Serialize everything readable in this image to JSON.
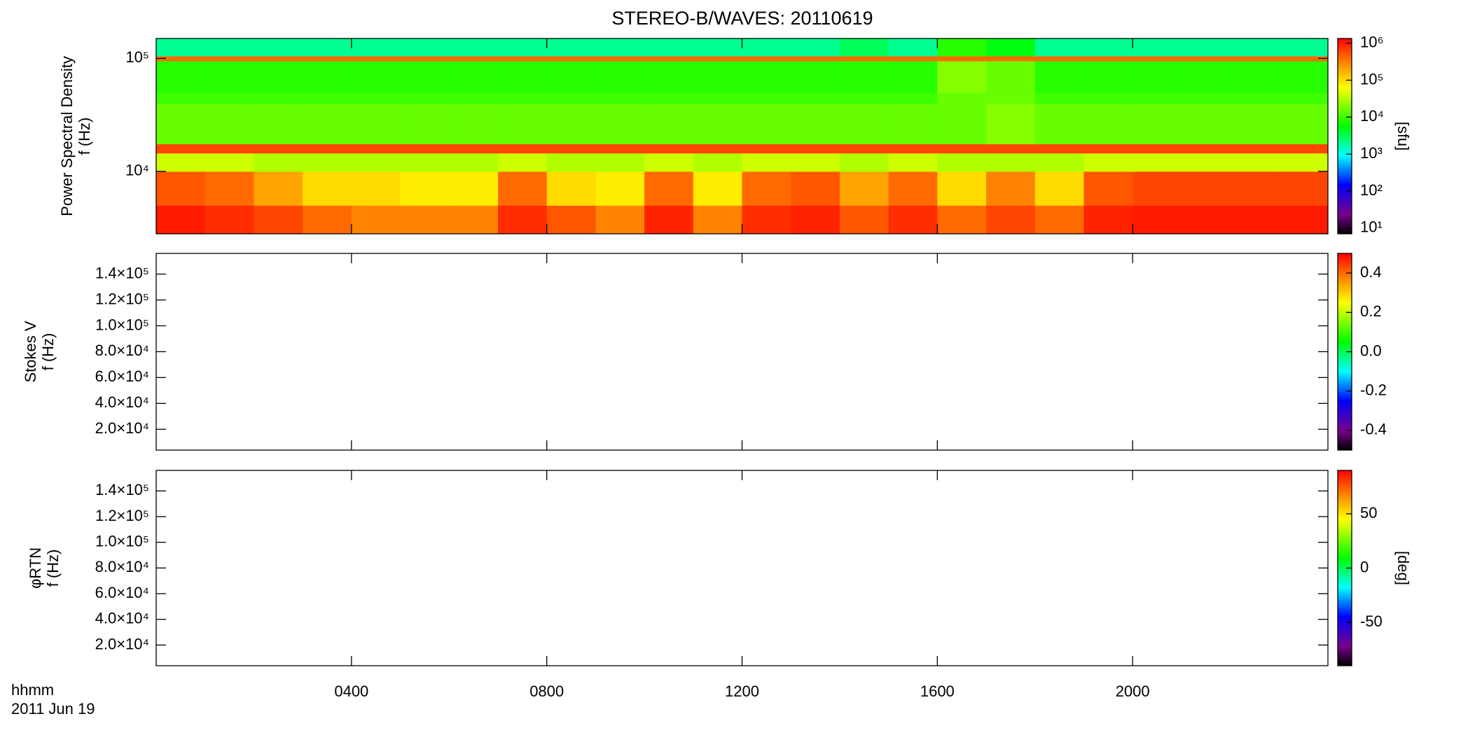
{
  "title": "STEREO-B/WAVES: 20110619",
  "time_axis": {
    "label": "hhmm",
    "date": "2011 Jun 19",
    "xlim": [
      0,
      24
    ],
    "xticks": [
      {
        "value": 4,
        "label": "0400"
      },
      {
        "value": 8,
        "label": "0800"
      },
      {
        "value": 12,
        "label": "1200"
      },
      {
        "value": 16,
        "label": "1600"
      },
      {
        "value": 20,
        "label": "2000"
      }
    ]
  },
  "chart_data": [
    {
      "type": "heatmap",
      "ylabel": [
        "Power Spectral Density",
        "f (Hz)"
      ],
      "ylog": true,
      "ylim": [
        2800,
        150000
      ],
      "yticks": [
        {
          "value": 10000,
          "label": "10⁴"
        },
        {
          "value": 100000,
          "label": "10⁵"
        }
      ],
      "x_edges": [
        0,
        1,
        2,
        3,
        4,
        5,
        6,
        7,
        8,
        9,
        10,
        11,
        12,
        13,
        14,
        15,
        16,
        17,
        18,
        19,
        20,
        21,
        22,
        23,
        24
      ],
      "y_edges": [
        2800,
        5000,
        10000,
        14500,
        17500,
        40000,
        50000,
        95000,
        105000,
        150000
      ],
      "z": [
        [
          1000000,
          800000,
          600000,
          400000,
          300000,
          300000,
          300000,
          800000,
          500000,
          300000,
          900000,
          300000,
          800000,
          900000,
          500000,
          800000,
          400000,
          600000,
          400000,
          900000,
          1000000,
          1000000,
          1000000,
          1000000
        ],
        [
          500000,
          400000,
          200000,
          100000,
          100000,
          80000,
          80000,
          400000,
          100000,
          80000,
          400000,
          80000,
          400000,
          500000,
          200000,
          400000,
          100000,
          300000,
          100000,
          500000,
          600000,
          600000,
          600000,
          600000
        ],
        [
          40000,
          40000,
          30000,
          30000,
          30000,
          30000,
          30000,
          40000,
          30000,
          30000,
          40000,
          30000,
          40000,
          40000,
          30000,
          40000,
          30000,
          30000,
          30000,
          40000,
          40000,
          40000,
          40000,
          40000
        ],
        [
          600000,
          600000,
          600000,
          600000,
          600000,
          600000,
          600000,
          600000,
          600000,
          600000,
          600000,
          600000,
          600000,
          600000,
          600000,
          600000,
          600000,
          600000,
          600000,
          600000,
          600000,
          600000,
          600000,
          600000
        ],
        [
          15000,
          15000,
          15000,
          15000,
          15000,
          15000,
          15000,
          15000,
          15000,
          15000,
          15000,
          15000,
          15000,
          15000,
          15000,
          15000,
          15000,
          20000,
          15000,
          15000,
          15000,
          15000,
          15000,
          15000
        ],
        [
          10000,
          10000,
          10000,
          10000,
          10000,
          10000,
          10000,
          10000,
          10000,
          10000,
          10000,
          10000,
          10000,
          10000,
          10000,
          10000,
          15000,
          15000,
          10000,
          10000,
          10000,
          10000,
          10000,
          10000
        ],
        [
          8000,
          8000,
          8000,
          8000,
          8000,
          8000,
          8000,
          8000,
          8000,
          8000,
          8000,
          8000,
          8000,
          8000,
          8000,
          8000,
          20000,
          15000,
          8000,
          8000,
          8000,
          8000,
          8000,
          8000
        ],
        [
          400000,
          400000,
          400000,
          400000,
          400000,
          400000,
          400000,
          400000,
          400000,
          400000,
          400000,
          400000,
          400000,
          400000,
          400000,
          400000,
          400000,
          400000,
          400000,
          400000,
          400000,
          400000,
          400000,
          400000
        ],
        [
          2000,
          2000,
          2000,
          2000,
          2000,
          2000,
          2000,
          2000,
          2000,
          2000,
          2000,
          2000,
          2000,
          2000,
          3000,
          2000,
          8000,
          5000,
          2000,
          2000,
          2000,
          2000,
          2000,
          2000
        ]
      ],
      "colorbar": {
        "label": "[sfu]",
        "log": true,
        "lim": [
          7,
          1340000
        ],
        "ticks": [
          {
            "value": 10,
            "label": "10¹"
          },
          {
            "value": 100,
            "label": "10²"
          },
          {
            "value": 1000,
            "label": "10³"
          },
          {
            "value": 10000,
            "label": "10⁴"
          },
          {
            "value": 100000,
            "label": "10⁵"
          },
          {
            "value": 1000000,
            "label": "10⁶"
          }
        ]
      }
    },
    {
      "type": "heatmap",
      "ylabel": [
        "Stokes V",
        "f (Hz)"
      ],
      "ylog": false,
      "ylim": [
        3900,
        156000
      ],
      "yticks": [
        {
          "value": 20000,
          "label": "2.0×10⁴"
        },
        {
          "value": 40000,
          "label": "4.0×10⁴"
        },
        {
          "value": 60000,
          "label": "6.0×10⁴"
        },
        {
          "value": 80000,
          "label": "8.0×10⁴"
        },
        {
          "value": 100000,
          "label": "1.0×10⁵"
        },
        {
          "value": 120000,
          "label": "1.2×10⁵"
        },
        {
          "value": 140000,
          "label": "1.4×10⁵"
        }
      ],
      "colorbar": {
        "log": false,
        "lim": [
          -0.5,
          0.5
        ],
        "ticks": [
          -0.4,
          -0.2,
          {
            "value": 0,
            "label": "0.0"
          },
          0.2,
          0.4
        ]
      }
    },
    {
      "type": "heatmap",
      "ylabel": [
        "φRTN",
        "f (Hz)"
      ],
      "ylog": false,
      "ylim": [
        3900,
        156000
      ],
      "yticks": [
        {
          "value": 20000,
          "label": "2.0×10⁴"
        },
        {
          "value": 40000,
          "label": "4.0×10⁴"
        },
        {
          "value": 60000,
          "label": "6.0×10⁴"
        },
        {
          "value": 80000,
          "label": "8.0×10⁴"
        },
        {
          "value": 100000,
          "label": "1.0×10⁵"
        },
        {
          "value": 120000,
          "label": "1.2×10⁵"
        },
        {
          "value": 140000,
          "label": "1.4×10⁵"
        }
      ],
      "colorbar": {
        "label": "[deg]",
        "log": false,
        "lim": [
          -90,
          90
        ],
        "ticks": [
          -50,
          0,
          50
        ]
      }
    }
  ]
}
